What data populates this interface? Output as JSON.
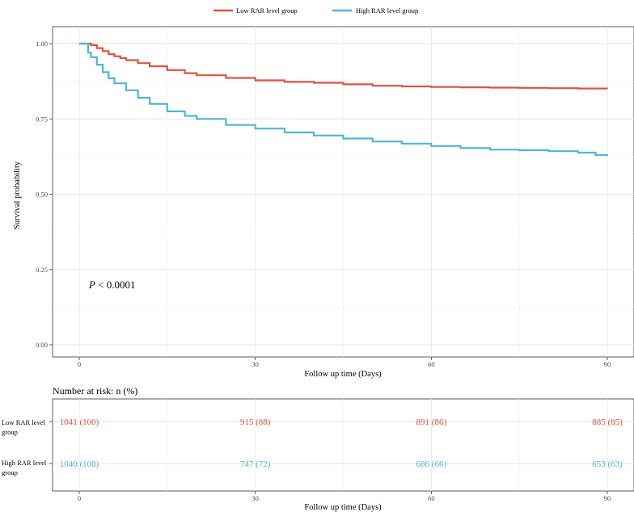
{
  "legend": {
    "items": [
      {
        "label": "Low RAR level group",
        "color": "#e0523f"
      },
      {
        "label": "High RAR level group",
        "color": "#4fb6d4"
      }
    ]
  },
  "chart_data": {
    "type": "line",
    "subtype": "kaplan-meier",
    "xlabel": "Follow up time (Days)",
    "ylabel": "Survival probability",
    "xlim": [
      0,
      90
    ],
    "ylim": [
      0,
      1
    ],
    "xticks": [
      0,
      30,
      60,
      90
    ],
    "yticks": [
      0,
      0.25,
      0.5,
      0.75,
      1.0
    ],
    "ytick_labels": [
      "0.00",
      "0.25",
      "0.50",
      "0.75",
      "1.00"
    ],
    "grid": true,
    "legend_position": "top",
    "annotation": {
      "italic": "P",
      "rest": " < 0.0001",
      "x": 2,
      "y": 0.2
    },
    "series": [
      {
        "name": "Low RAR level group",
        "color": "#e0523f",
        "x": [
          0,
          1,
          2,
          3,
          4,
          5,
          6,
          7,
          8,
          10,
          12,
          15,
          18,
          20,
          25,
          30,
          35,
          40,
          45,
          50,
          55,
          60,
          65,
          70,
          75,
          80,
          85,
          90
        ],
        "y": [
          1.0,
          1.0,
          0.995,
          0.985,
          0.975,
          0.965,
          0.958,
          0.952,
          0.945,
          0.935,
          0.925,
          0.912,
          0.902,
          0.895,
          0.886,
          0.878,
          0.873,
          0.87,
          0.865,
          0.86,
          0.858,
          0.856,
          0.855,
          0.854,
          0.853,
          0.852,
          0.851,
          0.85
        ]
      },
      {
        "name": "High RAR level group",
        "color": "#4fb6d4",
        "x": [
          0,
          1,
          1.5,
          2,
          3,
          4,
          5,
          6,
          8,
          10,
          12,
          15,
          18,
          20,
          25,
          30,
          35,
          40,
          45,
          50,
          55,
          60,
          65,
          70,
          75,
          80,
          85,
          88,
          90
        ],
        "y": [
          1.0,
          1.0,
          0.97,
          0.955,
          0.93,
          0.905,
          0.885,
          0.868,
          0.845,
          0.82,
          0.8,
          0.775,
          0.76,
          0.75,
          0.73,
          0.718,
          0.705,
          0.695,
          0.685,
          0.675,
          0.668,
          0.66,
          0.653,
          0.648,
          0.646,
          0.643,
          0.638,
          0.63,
          0.628
        ]
      }
    ],
    "risk_table": {
      "title": "Number at risk: n (%)",
      "xlabel": "Follow up time (Days)",
      "times": [
        0,
        30,
        60,
        90
      ],
      "rows": [
        {
          "label_line1": "Low RAR level",
          "label_line2": "group",
          "color": "#e0523f",
          "values": [
            "1041  (100)",
            "915  (88)",
            "891  (86)",
            "885  (85)"
          ]
        },
        {
          "label_line1": "High RAR level",
          "label_line2": "group",
          "color": "#4fb6d4",
          "values": [
            "1040  (100)",
            "747  (72)",
            "686  (66)",
            "653  (63)"
          ]
        }
      ]
    }
  }
}
